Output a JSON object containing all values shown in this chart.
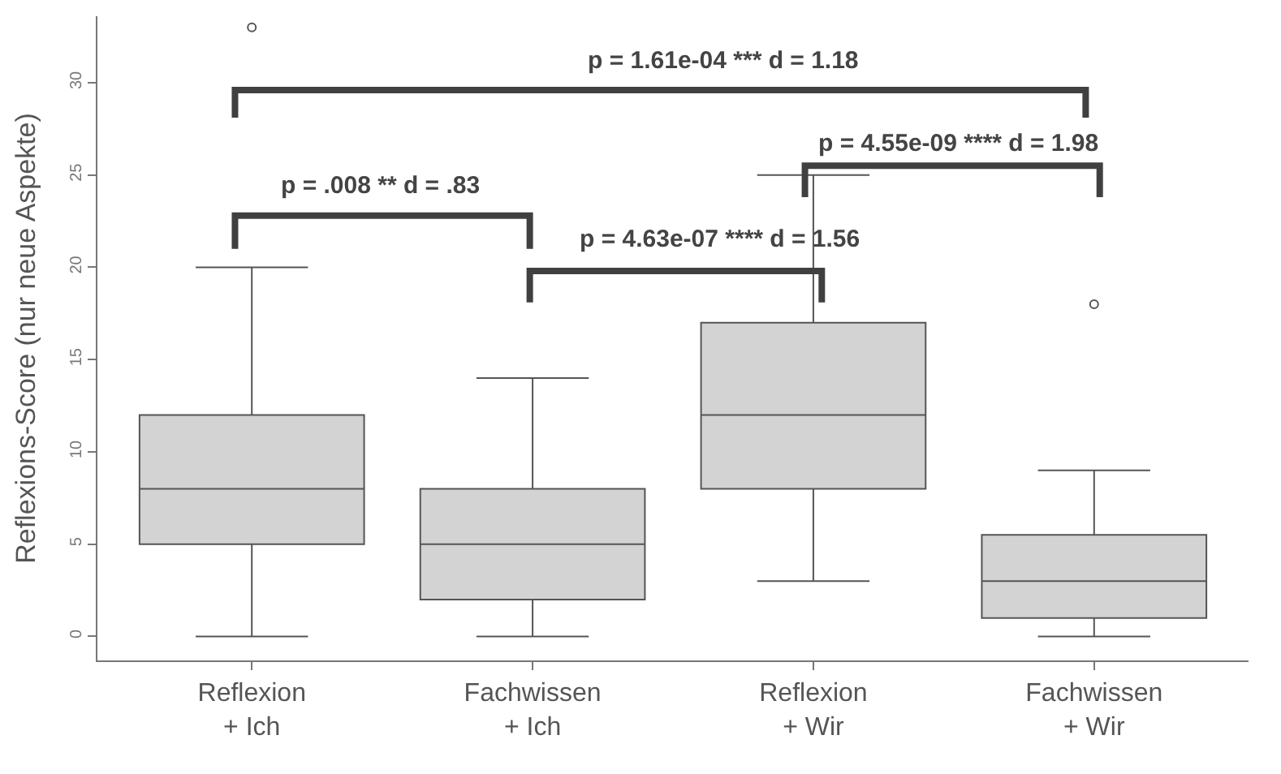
{
  "chart_data": {
    "type": "box",
    "ylabel": "Reflexions-Score (nur neue Aspekte)",
    "categories": [
      "Reflexion\n+ Ich",
      "Fachwissen\n+ Ich",
      "Reflexion\n+ Wir",
      "Fachwissen\n+ Wir"
    ],
    "boxes": [
      {
        "low": 0,
        "q1": 5,
        "median": 8,
        "q3": 12,
        "high": 20,
        "outliers": [
          33
        ]
      },
      {
        "low": 0,
        "q1": 2,
        "median": 5,
        "q3": 8,
        "high": 14
      },
      {
        "low": 3,
        "q1": 8,
        "median": 12,
        "q3": 17,
        "high": 25
      },
      {
        "low": 0,
        "q1": 1,
        "median": 3,
        "q3": 5.5,
        "high": 9,
        "outliers": [
          18
        ]
      }
    ],
    "color": "#d3d3d3",
    "ylim": [
      -1.3,
      33.6
    ],
    "yticks": [
      0,
      5,
      10,
      15,
      20,
      25,
      30
    ],
    "annotations": [
      "p = 1.61e-04 *** d = 1.18",
      "p = .008 ** d = .83",
      "p = 4.63e-07 **** d = 1.56",
      "p = 4.55e-09 **** d = 1.98"
    ]
  }
}
